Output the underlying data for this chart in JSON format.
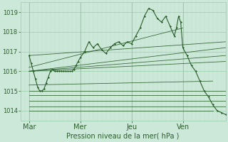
{
  "xlabel": "Pression niveau de la mer( hPa )",
  "ylim": [
    1013.5,
    1019.5
  ],
  "xlim": [
    0,
    96
  ],
  "yticks": [
    1014,
    1015,
    1016,
    1017,
    1018,
    1019
  ],
  "xtick_positions": [
    4,
    28,
    52,
    76
  ],
  "xtick_labels": [
    "Mar",
    "Mer",
    "Jeu",
    "Ven"
  ],
  "vline_positions": [
    4,
    28,
    52,
    76
  ],
  "bg_color": "#cce8d8",
  "grid_color_major": "#99ccaa",
  "grid_color_minor": "#bbddcc",
  "line_color": "#2a5e2a",
  "detail_line_x": [
    4,
    5,
    6,
    7,
    8,
    9,
    10,
    11,
    12,
    13,
    14,
    15,
    16,
    17,
    18,
    19,
    20,
    21,
    22,
    23,
    24,
    25,
    26,
    27,
    28,
    30,
    32,
    34,
    36,
    38,
    40,
    42,
    44,
    46,
    48,
    50,
    52,
    54,
    56,
    58,
    60,
    62,
    64,
    66,
    68,
    70,
    72,
    73,
    74,
    75,
    76,
    78,
    80,
    82,
    84,
    86,
    88,
    90,
    92,
    94,
    96
  ],
  "detail_line_y": [
    1016.8,
    1016.4,
    1016.0,
    1015.6,
    1015.2,
    1015.0,
    1015.0,
    1015.1,
    1015.4,
    1015.7,
    1016.0,
    1016.1,
    1016.0,
    1016.0,
    1016.0,
    1016.0,
    1016.0,
    1016.0,
    1016.0,
    1016.0,
    1016.0,
    1016.1,
    1016.3,
    1016.5,
    1016.7,
    1017.0,
    1017.5,
    1017.2,
    1017.4,
    1017.1,
    1016.9,
    1017.2,
    1017.4,
    1017.5,
    1017.3,
    1017.5,
    1017.4,
    1017.8,
    1018.2,
    1018.8,
    1019.2,
    1019.1,
    1018.7,
    1018.5,
    1018.8,
    1018.3,
    1017.8,
    1018.2,
    1018.8,
    1018.5,
    1017.2,
    1016.8,
    1016.3,
    1016.0,
    1015.5,
    1015.0,
    1014.7,
    1014.3,
    1014.0,
    1013.9,
    1013.8
  ],
  "forecast_lines": [
    {
      "x0": 4,
      "y0": 1016.8,
      "x1": 96,
      "y1": 1017.5
    },
    {
      "x0": 4,
      "y0": 1016.0,
      "x1": 96,
      "y1": 1017.2
    },
    {
      "x0": 4,
      "y0": 1016.0,
      "x1": 96,
      "y1": 1016.8
    },
    {
      "x0": 4,
      "y0": 1016.0,
      "x1": 96,
      "y1": 1016.5
    },
    {
      "x0": 4,
      "y0": 1015.0,
      "x1": 96,
      "y1": 1015.0
    },
    {
      "x0": 4,
      "y0": 1014.8,
      "x1": 96,
      "y1": 1014.8
    },
    {
      "x0": 4,
      "y0": 1014.5,
      "x1": 96,
      "y1": 1014.5
    },
    {
      "x0": 4,
      "y0": 1014.2,
      "x1": 96,
      "y1": 1014.2
    },
    {
      "x0": 4,
      "y0": 1014.0,
      "x1": 90,
      "y1": 1014.0
    },
    {
      "x0": 4,
      "y0": 1015.3,
      "x1": 90,
      "y1": 1015.5
    },
    {
      "x0": 4,
      "y0": 1016.2,
      "x1": 76,
      "y1": 1018.2
    }
  ],
  "xlabel_fontsize": 7,
  "ytick_fontsize": 6,
  "xtick_fontsize": 7
}
